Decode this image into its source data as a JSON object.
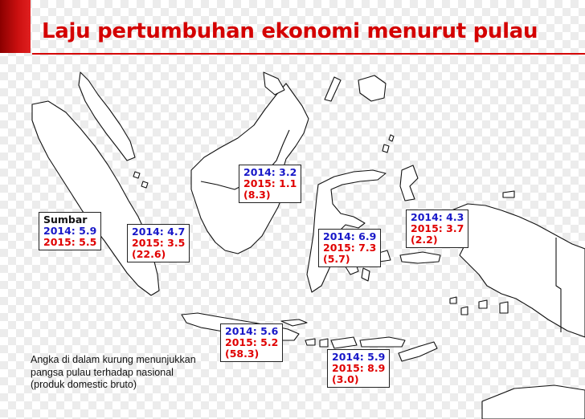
{
  "title": "Laju pertumbuhan ekonomi menurut pulau",
  "colors": {
    "accent": "#d40000",
    "year_2014": "#1818c8",
    "year_2015": "#e00000"
  },
  "regions": [
    {
      "key": "national",
      "header": "Sumbar",
      "y2014": "2014: 5.9",
      "y2015": "2015: 5.5",
      "share": ""
    },
    {
      "key": "sumatera",
      "header": "",
      "y2014": "2014: 4.7",
      "y2015": "2015: 3.5",
      "share": "(22.6)"
    },
    {
      "key": "kalimantan",
      "header": "",
      "y2014": "2014: 3.2",
      "y2015": "2015: 1.1",
      "share": "(8.3)"
    },
    {
      "key": "sulawesi",
      "header": "",
      "y2014": "2014: 6.9",
      "y2015": "2015: 7.3",
      "share": "(5.7)"
    },
    {
      "key": "maluku_papua",
      "header": "",
      "y2014": "2014: 4.3",
      "y2015": "2015: 3.7",
      "share": "(2.2)"
    },
    {
      "key": "jawa",
      "header": "",
      "y2014": "2014: 5.6",
      "y2015": "2015: 5.2",
      "share": "(58.3)"
    },
    {
      "key": "bali_nusa_tenggara",
      "header": "",
      "y2014": "2014: 5.9",
      "y2015": "2015: 8.9",
      "share": "(3.0)"
    }
  ],
  "note": "Angka di dalam kurung menunjukkan pangsa pulau terhadap nasional (produk domestic bruto)"
}
